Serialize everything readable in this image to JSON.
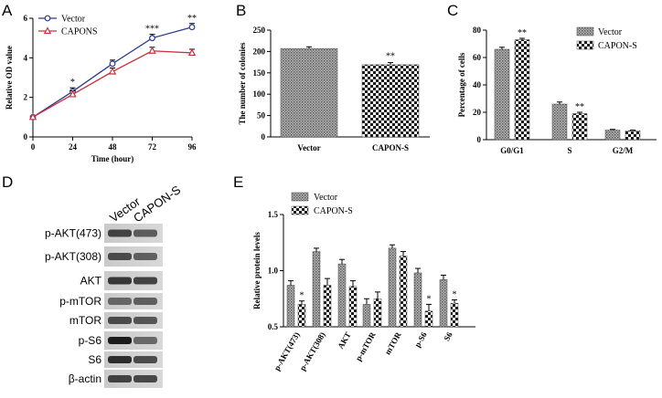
{
  "panels": {
    "A": "A",
    "B": "B",
    "C": "C",
    "D": "D",
    "E": "E"
  },
  "chart_data": [
    {
      "id": "A",
      "type": "line",
      "title": "",
      "xlabel": "Time (hour)",
      "ylabel": "Relative OD value",
      "x": [
        0,
        24,
        48,
        72,
        96
      ],
      "xlim": [
        0,
        96
      ],
      "ylim": [
        0,
        6
      ],
      "yticks": [
        0,
        2,
        4,
        6
      ],
      "series": [
        {
          "name": "Vector",
          "marker": "circle",
          "color": "#2b3a8c",
          "values": [
            1.0,
            2.3,
            3.7,
            5.0,
            5.55
          ]
        },
        {
          "name": "CAPONS",
          "marker": "triangle",
          "color": "#c8323c",
          "values": [
            1.0,
            2.15,
            3.3,
            4.35,
            4.25
          ]
        }
      ],
      "annotations": [
        {
          "x": 24,
          "text": "*"
        },
        {
          "x": 72,
          "text": "***"
        },
        {
          "x": 96,
          "text": "**"
        }
      ],
      "legend": "top-left"
    },
    {
      "id": "B",
      "type": "bar",
      "title": "",
      "xlabel": "",
      "ylabel": "The number of colonies",
      "categories": [
        "Vector",
        "CAPON-S"
      ],
      "values": [
        207,
        169
      ],
      "errors": [
        4,
        5
      ],
      "ylim": [
        0,
        250
      ],
      "yticks": [
        0,
        50,
        100,
        150,
        200,
        250
      ],
      "annotations": [
        {
          "category": "CAPON-S",
          "text": "**"
        }
      ]
    },
    {
      "id": "C",
      "type": "bar",
      "title": "",
      "xlabel": "",
      "ylabel": "Percentage of cells",
      "categories": [
        "G0/G1",
        "S",
        "G2/M"
      ],
      "series": [
        {
          "name": "Vector",
          "values": [
            66,
            26,
            7
          ]
        },
        {
          "name": "CAPON-S",
          "values": [
            73,
            19,
            6.5
          ]
        }
      ],
      "errors": [
        [
          1.5,
          1.5,
          0.5
        ],
        [
          1.0,
          1.0,
          0.5
        ]
      ],
      "ylim": [
        0,
        80
      ],
      "yticks": [
        0,
        20,
        40,
        60,
        80
      ],
      "annotations": [
        {
          "category": "G0/G1",
          "text": "**"
        },
        {
          "category": "S",
          "text": "**"
        }
      ],
      "legend": "top-right"
    },
    {
      "id": "E",
      "type": "bar",
      "title": "",
      "xlabel": "",
      "ylabel": "Relative protein levels",
      "categories": [
        "p-AKT(473)",
        "p-AKT(308)",
        "AKT",
        "p-mTOR",
        "mTOR",
        "p-S6",
        "S6"
      ],
      "series": [
        {
          "name": "Vector",
          "values": [
            0.87,
            1.17,
            1.06,
            0.7,
            1.2,
            0.98,
            0.92
          ]
        },
        {
          "name": "CAPON-S",
          "values": [
            0.7,
            0.87,
            0.86,
            0.75,
            1.13,
            0.64,
            0.71
          ]
        }
      ],
      "errors": [
        [
          0.04,
          0.03,
          0.04,
          0.05,
          0.03,
          0.04,
          0.04
        ],
        [
          0.03,
          0.06,
          0.05,
          0.06,
          0.04,
          0.06,
          0.03
        ]
      ],
      "ylim": [
        0.5,
        1.5
      ],
      "yticks": [
        0.5,
        1.0,
        1.5
      ],
      "annotations": [
        {
          "category": "p-AKT(473)",
          "text": "*"
        },
        {
          "category": "p-S6",
          "text": "*"
        },
        {
          "category": "S6",
          "text": "*"
        }
      ],
      "legend": "top-left"
    }
  ],
  "blot": {
    "column_labels": [
      "Vector",
      "CAPON-S"
    ],
    "rows": [
      "p-AKT(473)",
      "p-AKT(308)",
      "AKT",
      "p-mTOR",
      "mTOR",
      "p-S6",
      "S6",
      "β-actin"
    ]
  }
}
